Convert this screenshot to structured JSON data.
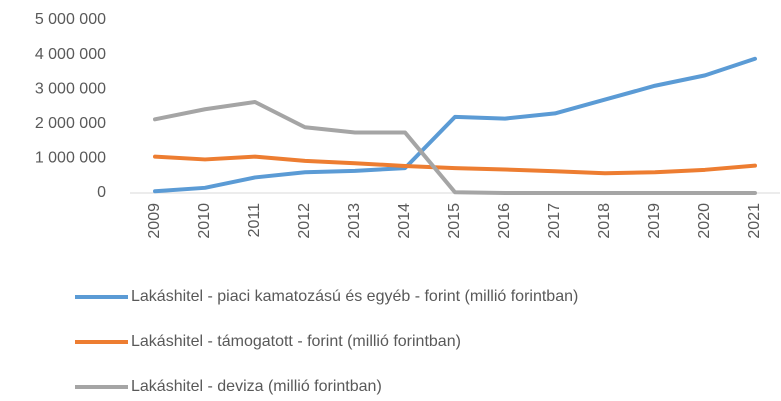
{
  "chart_data": {
    "type": "line",
    "categories": [
      "2009",
      "2010",
      "2011",
      "2012",
      "2013",
      "2014",
      "2015",
      "2016",
      "2017",
      "2018",
      "2019",
      "2020",
      "2021"
    ],
    "series": [
      {
        "name": "Lakáshitel - piaci kamatozású és egyéb - forint (millió forintban)",
        "color": "#5b9bd5",
        "values": [
          50000,
          150000,
          450000,
          600000,
          640000,
          720000,
          2200000,
          2150000,
          2300000,
          2700000,
          3100000,
          3400000,
          3880000
        ]
      },
      {
        "name": "Lakáshitel - támogatott - forint (millió forintban)",
        "color": "#ed7d31",
        "values": [
          1050000,
          970000,
          1050000,
          930000,
          860000,
          780000,
          720000,
          680000,
          630000,
          570000,
          600000,
          670000,
          790000
        ]
      },
      {
        "name": "Lakáshitel - deviza (millió forintban)",
        "color": "#a5a5a5",
        "values": [
          2130000,
          2420000,
          2630000,
          1900000,
          1750000,
          1750000,
          20000,
          0,
          0,
          0,
          0,
          0,
          0
        ]
      }
    ],
    "ylim": [
      0,
      5000000
    ],
    "yticks": [
      0,
      {
        "value": 1000000,
        "label": "1 000 000"
      },
      {
        "value": 2000000,
        "label": "2 000 000"
      },
      {
        "value": 3000000,
        "label": "3 000 000"
      },
      {
        "value": 4000000,
        "label": "4 000 000"
      },
      {
        "value": 5000000,
        "label": "5 000 000"
      }
    ],
    "grid": false,
    "legend": "bottom"
  }
}
